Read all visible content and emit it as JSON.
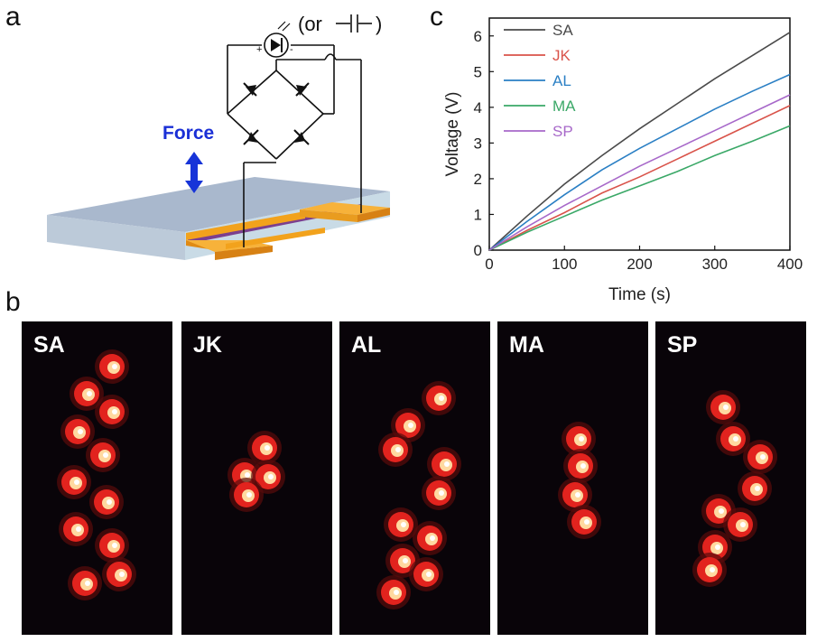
{
  "panel_labels": {
    "a": "a",
    "b": "b",
    "c": "c"
  },
  "panel_a": {
    "force_label": "Force",
    "or_label": "(or",
    "close_paren": ")",
    "plus_sign": "+",
    "minus_sign": "-",
    "colors": {
      "force": "#1a2fd6",
      "arrow": "#1734d8",
      "substrate_top": "#a9b8cd",
      "electrode": "#f2a21c",
      "strip": "#7b3f8e"
    }
  },
  "chart_data": {
    "type": "line",
    "title": "",
    "xlabel": "Time (s)",
    "ylabel": "Voltage (V)",
    "xlim": [
      0,
      400
    ],
    "ylim": [
      0,
      6.5
    ],
    "x_ticks": [
      "0",
      "100",
      "200",
      "300",
      "400"
    ],
    "y_ticks": [
      "0",
      "1",
      "2",
      "3",
      "4",
      "5",
      "6"
    ],
    "legend_position": "top-left",
    "x": [
      0,
      50,
      100,
      150,
      200,
      250,
      300,
      350,
      400
    ],
    "series": [
      {
        "name": "SA",
        "color": "#4a4a4a",
        "values": [
          0,
          0.95,
          1.85,
          2.65,
          3.4,
          4.1,
          4.8,
          5.45,
          6.1
        ]
      },
      {
        "name": "JK",
        "color": "#d9534a",
        "values": [
          0,
          0.55,
          1.05,
          1.6,
          2.05,
          2.55,
          3.05,
          3.55,
          4.05
        ]
      },
      {
        "name": "AL",
        "color": "#2a7fc4",
        "values": [
          0,
          0.8,
          1.55,
          2.25,
          2.85,
          3.4,
          3.95,
          4.45,
          4.92
        ]
      },
      {
        "name": "MA",
        "color": "#3aa867",
        "values": [
          0,
          0.5,
          0.95,
          1.4,
          1.8,
          2.2,
          2.65,
          3.05,
          3.48
        ]
      },
      {
        "name": "SP",
        "color": "#a768c9",
        "values": [
          0,
          0.65,
          1.25,
          1.8,
          2.35,
          2.85,
          3.35,
          3.85,
          4.35
        ]
      }
    ]
  },
  "panel_b": {
    "photos": [
      {
        "label": "SA",
        "led_count": 11
      },
      {
        "label": "JK",
        "led_count": 4
      },
      {
        "label": "AL",
        "led_count": 10
      },
      {
        "label": "MA",
        "led_count": 4
      },
      {
        "label": "SP",
        "led_count": 8
      }
    ]
  }
}
